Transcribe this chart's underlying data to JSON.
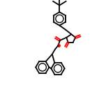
{
  "bg": "#ffffff",
  "bc": "#000000",
  "oc": "#ff0000",
  "nc": "#0000cd",
  "lw": 1.3,
  "figsize": [
    1.52,
    1.52
  ],
  "dpi": 100,
  "xlim": [
    0,
    10
  ],
  "ylim": [
    0,
    13
  ]
}
